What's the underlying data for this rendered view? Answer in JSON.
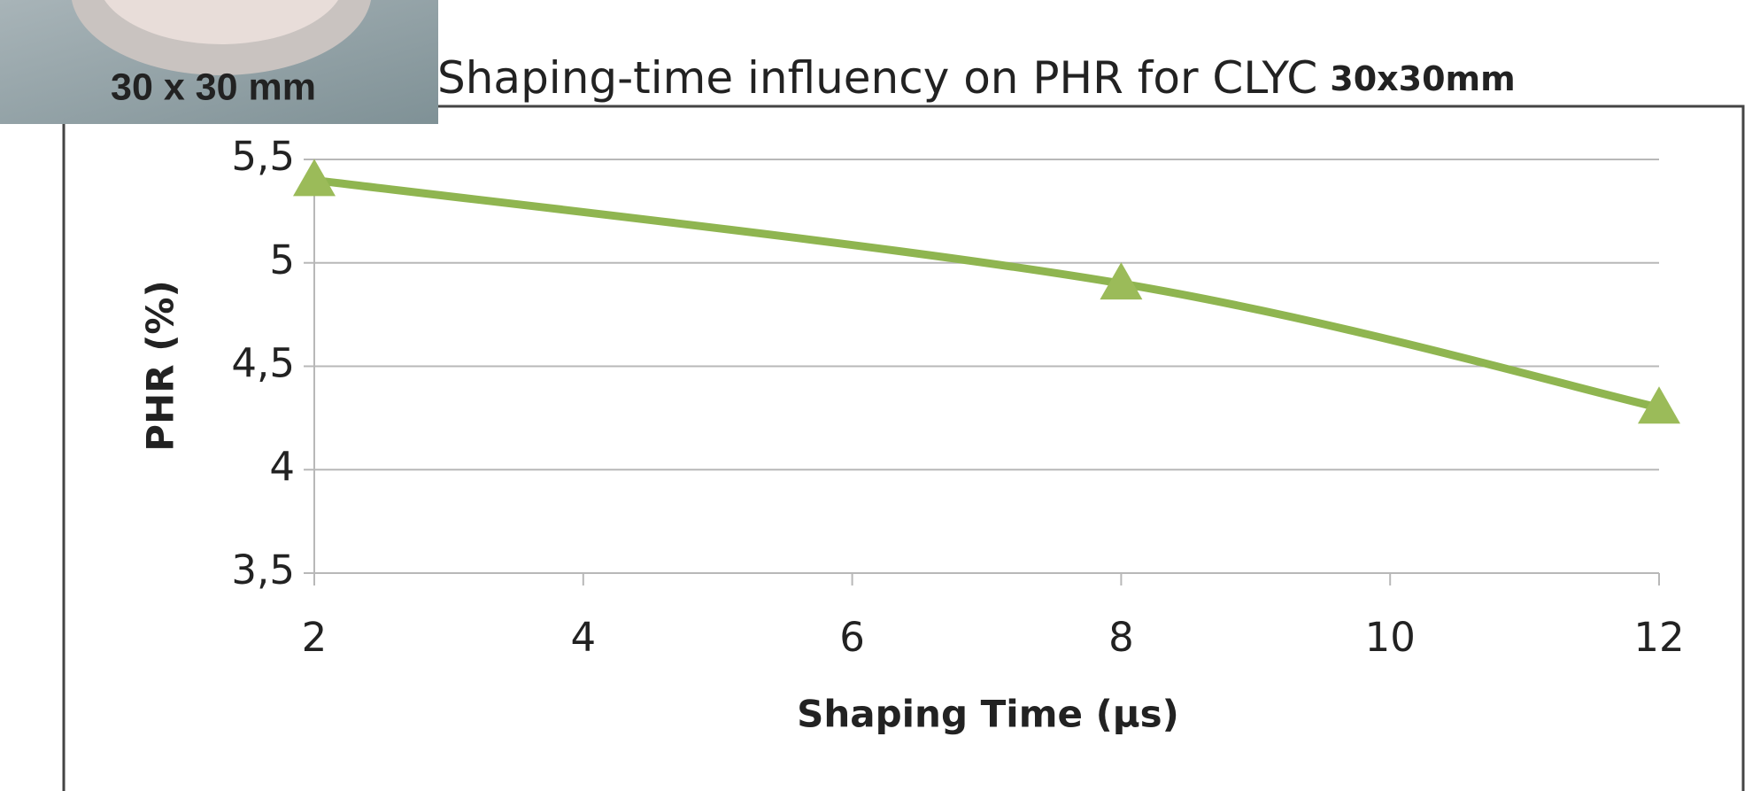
{
  "chart_data": {
    "type": "line",
    "title": "Shaping-time influency on PHR for CLYC",
    "subtitle": "30x30mm",
    "image_label": "30 x 30 mm",
    "x_label": "Shaping Time (µs)",
    "y_label": "PHR (%)",
    "x": [
      2,
      8,
      12
    ],
    "series": [
      {
        "name": "PHR",
        "color": "#8fb550",
        "values": [
          5.4,
          4.9,
          4.3
        ]
      }
    ],
    "xlim": [
      2,
      12
    ],
    "xticks": [
      2,
      4,
      6,
      8,
      10,
      12
    ],
    "ylim": [
      3.5,
      5.5
    ],
    "yticks": [
      {
        "value": 3.5,
        "label": "3,5"
      },
      4,
      {
        "value": 4.5,
        "label": "4,5"
      },
      5,
      {
        "value": 5.5,
        "label": "5,5"
      }
    ],
    "grid": true
  }
}
